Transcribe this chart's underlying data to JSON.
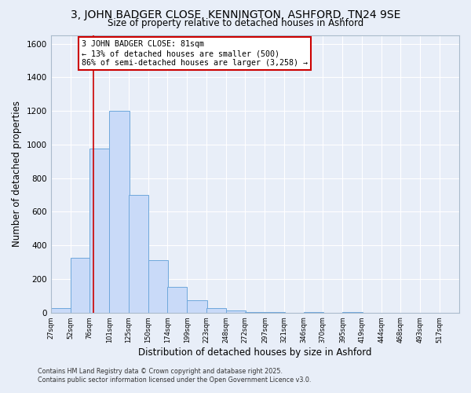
{
  "title": "3, JOHN BADGER CLOSE, KENNINGTON, ASHFORD, TN24 9SE",
  "subtitle": "Size of property relative to detached houses in Ashford",
  "xlabel": "Distribution of detached houses by size in Ashford",
  "ylabel": "Number of detached properties",
  "bar_values": [
    25,
    325,
    975,
    1200,
    700,
    310,
    155,
    75,
    25,
    15,
    3,
    1,
    0,
    1,
    0,
    1,
    0,
    0,
    0,
    0
  ],
  "bar_color": "#c9daf8",
  "bar_edge_color": "#6fa8dc",
  "vline_x": 81,
  "vline_color": "#cc0000",
  "ylim": [
    0,
    1650
  ],
  "yticks": [
    0,
    200,
    400,
    600,
    800,
    1000,
    1200,
    1400,
    1600
  ],
  "bin_edges": [
    27,
    52,
    76,
    101,
    125,
    150,
    174,
    199,
    223,
    248,
    272,
    297,
    321,
    346,
    370,
    395,
    419,
    444,
    468,
    493,
    517
  ],
  "bin_labels": [
    "27sqm",
    "52sqm",
    "76sqm",
    "101sqm",
    "125sqm",
    "150sqm",
    "174sqm",
    "199sqm",
    "223sqm",
    "248sqm",
    "272sqm",
    "297sqm",
    "321sqm",
    "346sqm",
    "370sqm",
    "395sqm",
    "419sqm",
    "444sqm",
    "468sqm",
    "493sqm",
    "517sqm"
  ],
  "annotation_line1": "3 JOHN BADGER CLOSE: 81sqm",
  "annotation_line2": "← 13% of detached houses are smaller (500)",
  "annotation_line3": "86% of semi-detached houses are larger (3,258) →",
  "footnote1": "Contains HM Land Registry data © Crown copyright and database right 2025.",
  "footnote2": "Contains public sector information licensed under the Open Government Licence v3.0.",
  "bg_color": "#e8eef8",
  "grid_color": "#ffffff"
}
